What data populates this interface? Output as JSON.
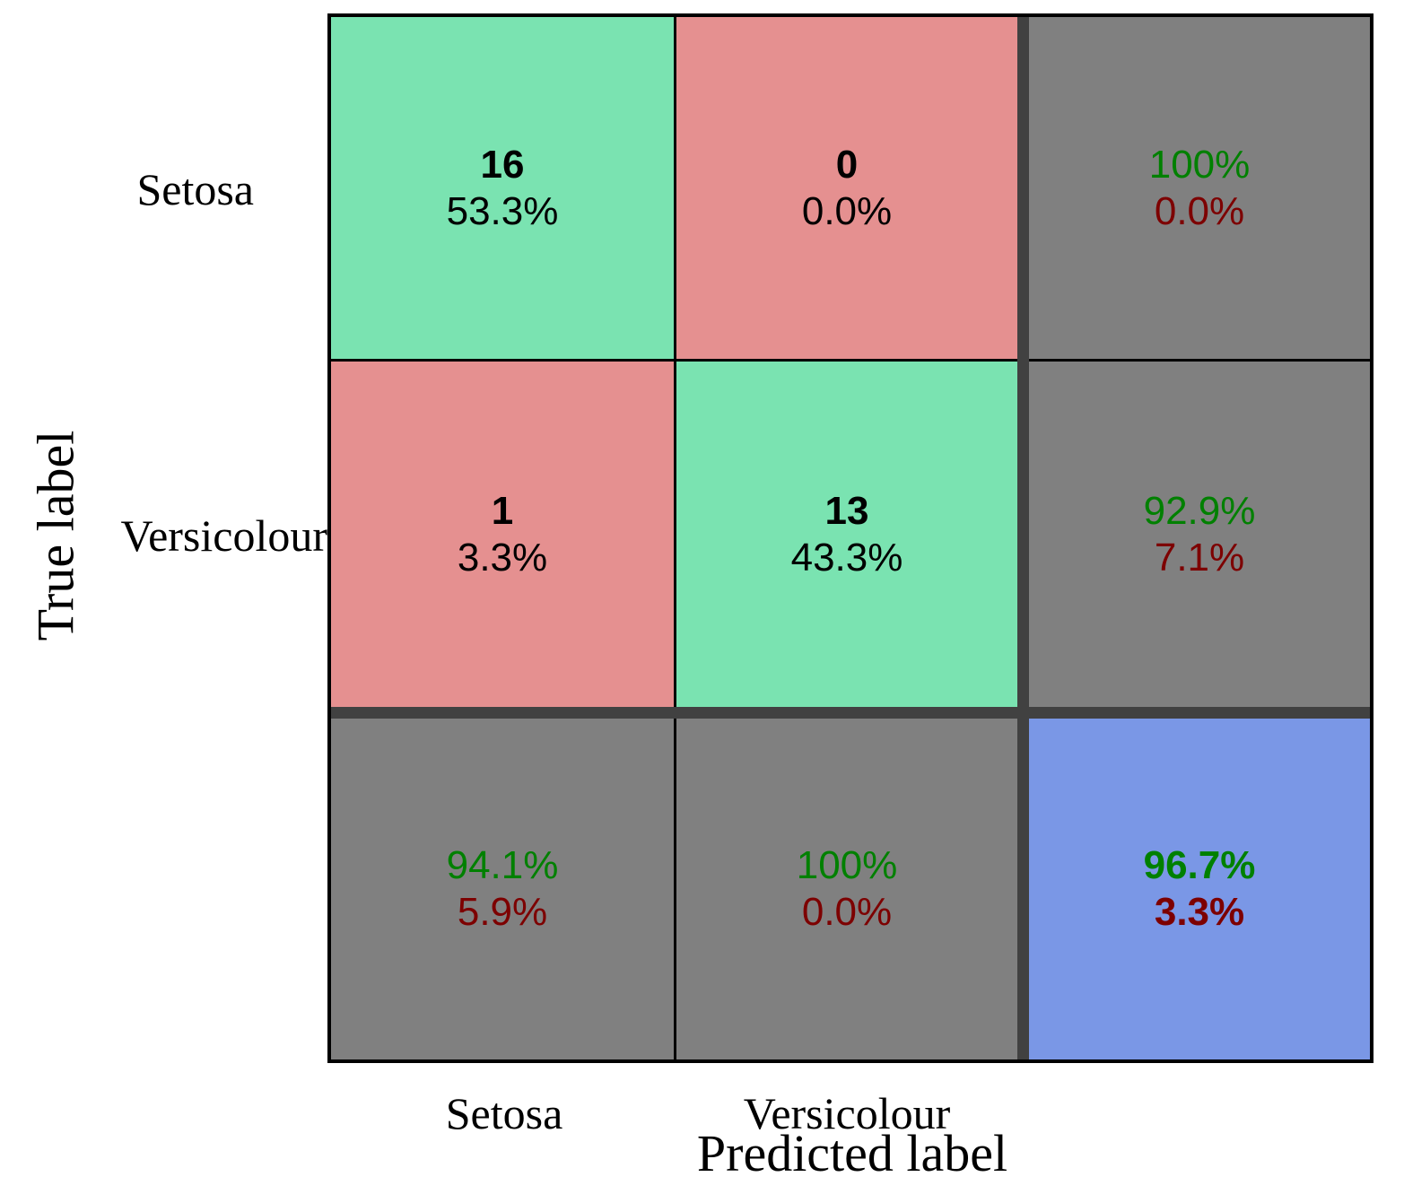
{
  "chart_data": {
    "type": "heatmap",
    "subtype": "confusion-matrix",
    "title": "",
    "xlabel": "Predicted label",
    "ylabel": "True label",
    "x_ticks": [
      "Setosa",
      "Versicolour"
    ],
    "y_ticks": [
      "Setosa",
      "Versicolour"
    ],
    "counts": [
      [
        16,
        0
      ],
      [
        1,
        13
      ]
    ],
    "count_percent_of_total": [
      [
        "53.3%",
        "0.0%"
      ],
      [
        "3.3%",
        "43.3%"
      ]
    ],
    "cells": {
      "r1c1": {
        "count": "16",
        "pct": "53.3%"
      },
      "r1c2": {
        "count": "0",
        "pct": "0.0%"
      },
      "r1sum": {
        "pos": "100%",
        "neg": "0.0%"
      },
      "r2c1": {
        "count": "1",
        "pct": "3.3%"
      },
      "r2c2": {
        "count": "13",
        "pct": "43.3%"
      },
      "r2sum": {
        "pos": "92.9%",
        "neg": "7.1%"
      },
      "c1sum": {
        "pos": "94.1%",
        "neg": "5.9%"
      },
      "c2sum": {
        "pos": "100%",
        "neg": "0.0%"
      },
      "overall": {
        "pos": "96.7%",
        "neg": "3.3%"
      }
    },
    "colors": {
      "diagonal_bg": "#7AE3B1",
      "off_diagonal_bg": "#E59090",
      "summary_bg": "#808080",
      "overall_bg": "#7A97E6",
      "separator_band": "#414141",
      "grid_line": "#000000",
      "pos_text": "#008000",
      "neg_text": "#7D0000",
      "cell_text": "#000000"
    },
    "legend": "none",
    "grid": "on"
  }
}
